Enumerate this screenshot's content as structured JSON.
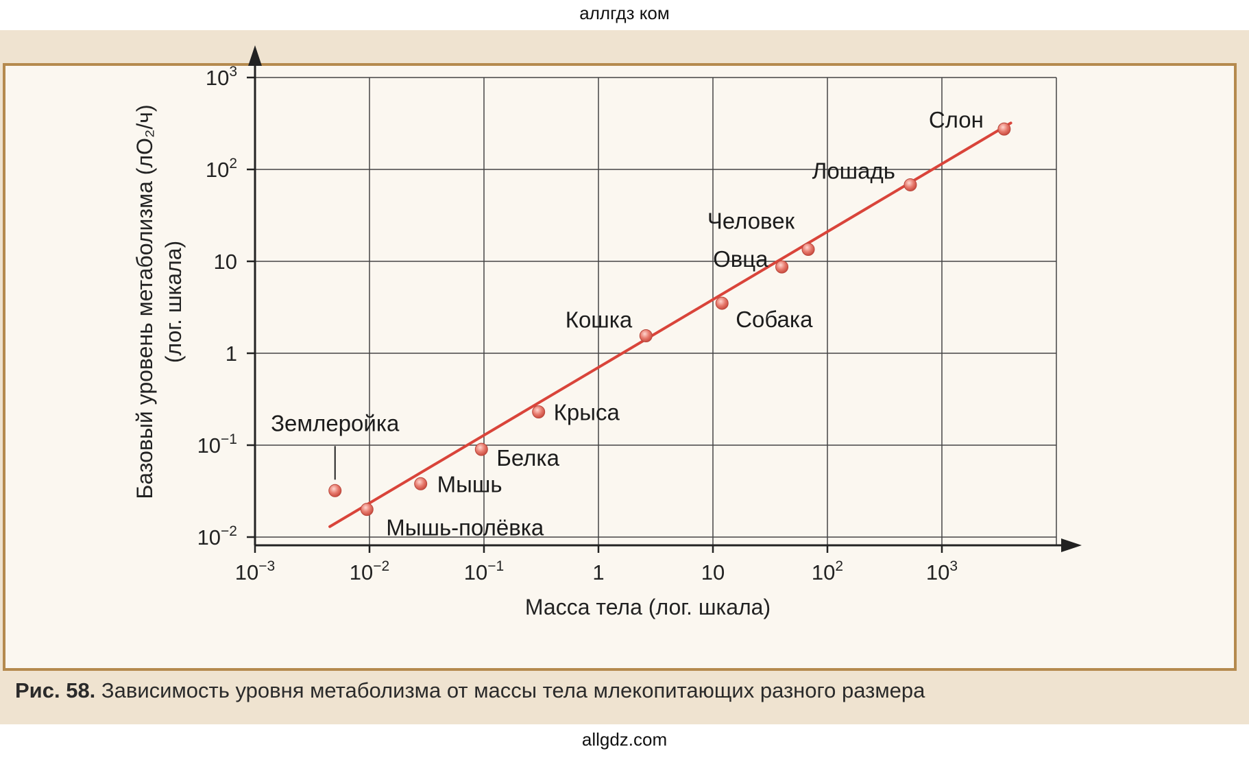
{
  "watermark_top": "аллгдз ком",
  "watermark_bottom": "allgdz.com",
  "caption": {
    "label": "Рис. 58.",
    "text": "Зависимость уровня метаболизма от массы тела млекопитающих разного размера"
  },
  "colors": {
    "line": "#d9443a",
    "point": "#e2776b",
    "grid": "#444444",
    "frame": "#b58a4e"
  },
  "chart_data": {
    "type": "scatter",
    "title": "",
    "xlabel": "Масса тела (лог. шкала)",
    "ylabel": "Базовый уровень метаболизма (лO₂/ч)",
    "ylabel_sub": "(лог. шкала)",
    "xscale": "log",
    "yscale": "log",
    "xlim": [
      0.001,
      10000
    ],
    "ylim": [
      0.01,
      1000
    ],
    "grid": true,
    "x_ticks": [
      {
        "value": 0.001,
        "base": "10",
        "exp": "−3"
      },
      {
        "value": 0.01,
        "base": "10",
        "exp": "−2"
      },
      {
        "value": 0.1,
        "base": "10",
        "exp": "−1"
      },
      {
        "value": 1,
        "base": "1",
        "exp": ""
      },
      {
        "value": 10,
        "base": "10",
        "exp": ""
      },
      {
        "value": 100,
        "base": "10",
        "exp": "2"
      },
      {
        "value": 1000,
        "base": "10",
        "exp": "3"
      }
    ],
    "y_ticks": [
      {
        "value": 0.01,
        "base": "10",
        "exp": "−2"
      },
      {
        "value": 0.1,
        "base": "10",
        "exp": "−1"
      },
      {
        "value": 1,
        "base": "1",
        "exp": ""
      },
      {
        "value": 10,
        "base": "10",
        "exp": ""
      },
      {
        "value": 100,
        "base": "10",
        "exp": "2"
      },
      {
        "value": 1000,
        "base": "10",
        "exp": "3"
      }
    ],
    "points": [
      {
        "name": "Землеройка",
        "x": 0.005,
        "y": 0.032
      },
      {
        "name": "Мышь-полёвка",
        "x": 0.0095,
        "y": 0.02
      },
      {
        "name": "Мышь",
        "x": 0.028,
        "y": 0.038
      },
      {
        "name": "Белка",
        "x": 0.095,
        "y": 0.09
      },
      {
        "name": "Крыса",
        "x": 0.3,
        "y": 0.23
      },
      {
        "name": "Кошка",
        "x": 2.6,
        "y": 1.55
      },
      {
        "name": "Собака",
        "x": 12,
        "y": 3.5
      },
      {
        "name": "Овца",
        "x": 40,
        "y": 8.7
      },
      {
        "name": "Человек",
        "x": 68,
        "y": 13.5
      },
      {
        "name": "Лошадь",
        "x": 530,
        "y": 68
      },
      {
        "name": "Слон",
        "x": 3500,
        "y": 275
      }
    ],
    "fit_line": {
      "x": [
        0.0045,
        4000
      ],
      "y": [
        0.013,
        320
      ]
    }
  }
}
